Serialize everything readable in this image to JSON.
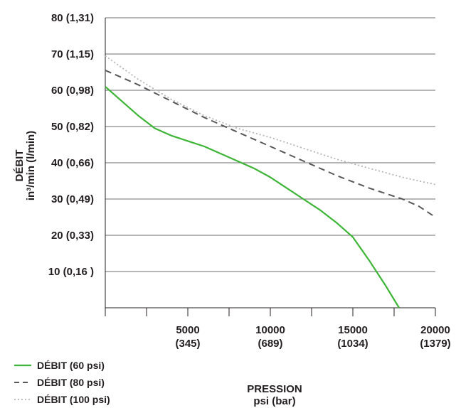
{
  "chart_data": {
    "type": "line",
    "xlabel": [
      "PRESSION",
      "psi (bar)"
    ],
    "ylabel": [
      "DÉBIT",
      "in³/min  (l/min)"
    ],
    "xlim": [
      0,
      20000
    ],
    "ylim": [
      0,
      80
    ],
    "x_ticks": [
      {
        "value": 5000,
        "lines": [
          "5000",
          "(345)"
        ]
      },
      {
        "value": 10000,
        "lines": [
          "10000",
          "(689)"
        ]
      },
      {
        "value": 15000,
        "lines": [
          "15000",
          "(1034)"
        ]
      },
      {
        "value": 20000,
        "lines": [
          "20000",
          "(1379)"
        ]
      }
    ],
    "x_minor_ticks": [
      0,
      2500,
      5000,
      7500,
      10000,
      12500,
      15000,
      17500,
      20000
    ],
    "y_ticks": [
      {
        "value": 10,
        "label": "10 (0,16 )"
      },
      {
        "value": 20,
        "label": "20 (0,33)"
      },
      {
        "value": 30,
        "label": "30 (0,49)"
      },
      {
        "value": 40,
        "label": "40 (0,66)"
      },
      {
        "value": 50,
        "label": "50 (0,82)"
      },
      {
        "value": 60,
        "label": "60 (0,98)"
      },
      {
        "value": 70,
        "label": "70 (1,15)"
      },
      {
        "value": 80,
        "label": "80 (1,31)"
      }
    ],
    "grid": "horizontal",
    "legend_position": "bottom-left",
    "series": [
      {
        "name": "DÉBIT (60 psi)",
        "color": "#3db536",
        "style": "solid",
        "points": [
          [
            0,
            61
          ],
          [
            1000,
            57
          ],
          [
            2000,
            53
          ],
          [
            3000,
            49.5
          ],
          [
            4000,
            47.5
          ],
          [
            5000,
            46
          ],
          [
            6000,
            44.5
          ],
          [
            7000,
            42.5
          ],
          [
            8000,
            40.5
          ],
          [
            9000,
            38.5
          ],
          [
            10000,
            36
          ],
          [
            11000,
            33
          ],
          [
            12000,
            30
          ],
          [
            13000,
            27
          ],
          [
            14000,
            23.5
          ],
          [
            15000,
            19.5
          ],
          [
            16000,
            13
          ],
          [
            17000,
            6
          ],
          [
            17800,
            0
          ]
        ]
      },
      {
        "name": "DÉBIT (80 psi)",
        "color": "#58585a",
        "style": "dashed",
        "points": [
          [
            0,
            65.5
          ],
          [
            2000,
            61.5
          ],
          [
            4000,
            57
          ],
          [
            6000,
            52.5
          ],
          [
            8000,
            48.5
          ],
          [
            10000,
            44.5
          ],
          [
            12000,
            40.5
          ],
          [
            14000,
            36.5
          ],
          [
            16000,
            33
          ],
          [
            18000,
            30
          ],
          [
            19000,
            28
          ],
          [
            20000,
            25
          ]
        ]
      },
      {
        "name": "DÉBIT (100 psi)",
        "color": "#b4b4b4",
        "style": "dotted",
        "points": [
          [
            0,
            69.5
          ],
          [
            2000,
            63
          ],
          [
            4000,
            57.5
          ],
          [
            6000,
            53
          ],
          [
            8000,
            49.5
          ],
          [
            10000,
            47
          ],
          [
            12000,
            44
          ],
          [
            14000,
            41
          ],
          [
            16000,
            38.5
          ],
          [
            18000,
            36
          ],
          [
            20000,
            34
          ]
        ]
      }
    ]
  }
}
